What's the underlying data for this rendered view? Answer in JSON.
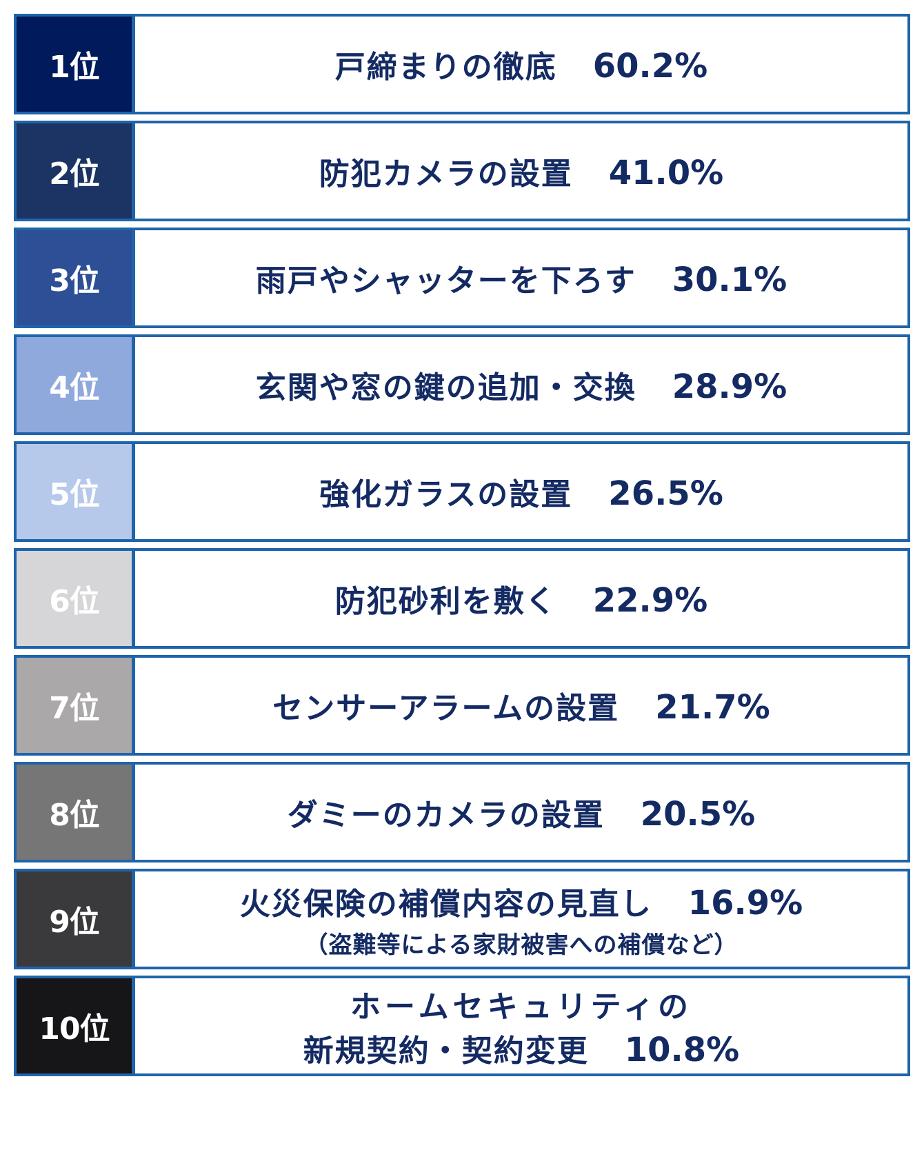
{
  "chart_data": {
    "type": "table",
    "rows": [
      {
        "rank": "1位",
        "label": "戸締まりの徹底",
        "value": 60.2,
        "pct": "60.2%",
        "badge_color": "#001a5c",
        "badge_text_color": "#ffffff"
      },
      {
        "rank": "2位",
        "label": "防犯カメラの設置",
        "value": 41.0,
        "pct": "41.0%",
        "badge_color": "#1b3463",
        "badge_text_color": "#ffffff"
      },
      {
        "rank": "3位",
        "label": "雨戸やシャッターを下ろす",
        "value": 30.1,
        "pct": "30.1%",
        "badge_color": "#2c4f95",
        "badge_text_color": "#ffffff"
      },
      {
        "rank": "4位",
        "label": "玄関や窓の鍵の追加・交換",
        "value": 28.9,
        "pct": "28.9%",
        "badge_color": "#8fa9dc",
        "badge_text_color": "#ffffff"
      },
      {
        "rank": "5位",
        "label": "強化ガラスの設置",
        "value": 26.5,
        "pct": "26.5%",
        "badge_color": "#b7c9ea",
        "badge_text_color": "#ffffff"
      },
      {
        "rank": "6位",
        "label": "防犯砂利を敷く",
        "value": 22.9,
        "pct": "22.9%",
        "badge_color": "#d6d6d8",
        "badge_text_color": "#ffffff"
      },
      {
        "rank": "7位",
        "label": "センサーアラームの設置",
        "value": 21.7,
        "pct": "21.7%",
        "badge_color": "#aaa8a8",
        "badge_text_color": "#ffffff"
      },
      {
        "rank": "8位",
        "label": "ダミーのカメラの設置",
        "value": 20.5,
        "pct": "20.5%",
        "badge_color": "#777676",
        "badge_text_color": "#ffffff"
      },
      {
        "rank": "9位",
        "label": "火災保険の補償内容の見直し",
        "value": 16.9,
        "pct": "16.9%",
        "note": "（盗難等による家財被害への補償など）",
        "badge_color": "#3a3a3c",
        "badge_text_color": "#ffffff"
      },
      {
        "rank": "10位",
        "label_line1": "ホームセキュリティの",
        "label_line2": "新規契約・契約変更",
        "value": 10.8,
        "pct": "10.8%",
        "badge_color": "#161618",
        "badge_text_color": "#ffffff"
      }
    ],
    "border_color": "#1f64ab",
    "text_color": "#142a63"
  }
}
